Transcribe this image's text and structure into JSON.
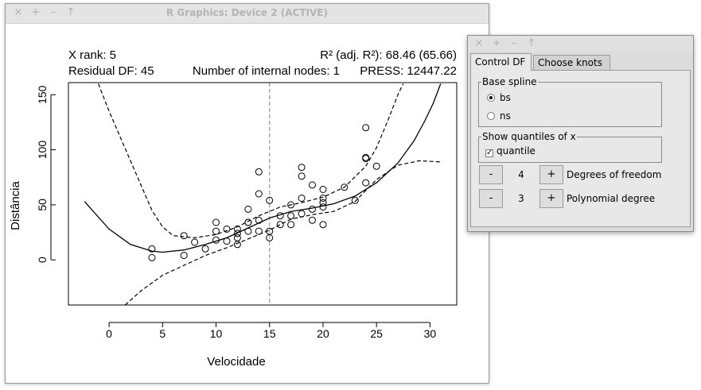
{
  "window": {
    "title": "R Graphics: Device 2 (ACTIVE)",
    "buttons": [
      "×",
      "+",
      "–",
      "↑"
    ]
  },
  "plot": {
    "stats": {
      "x_rank": "X rank: 5",
      "residual_df": "Residual DF: 45",
      "r2": "R² (adj. R²): 68.46 (65.66)",
      "internal_nodes": "Number of internal nodes: 1",
      "press": "PRESS: 12447.22"
    }
  },
  "chart_data": {
    "type": "scatter",
    "xlabel": "Velocidade",
    "ylabel": "Distância",
    "xlim": [
      -3.8,
      32.5
    ],
    "ylim": [
      -41,
      161
    ],
    "xticks": [
      0,
      5,
      10,
      15,
      20,
      25,
      30
    ],
    "yticks": [
      0,
      50,
      100,
      150
    ],
    "vline_x": 15,
    "points": [
      [
        4,
        2
      ],
      [
        4,
        10
      ],
      [
        7,
        4
      ],
      [
        7,
        22
      ],
      [
        8,
        16
      ],
      [
        9,
        10
      ],
      [
        10,
        18
      ],
      [
        10,
        26
      ],
      [
        10,
        34
      ],
      [
        11,
        17
      ],
      [
        11,
        28
      ],
      [
        12,
        14
      ],
      [
        12,
        20
      ],
      [
        12,
        24
      ],
      [
        12,
        28
      ],
      [
        13,
        26
      ],
      [
        13,
        34
      ],
      [
        13,
        34
      ],
      [
        13,
        46
      ],
      [
        14,
        26
      ],
      [
        14,
        36
      ],
      [
        14,
        60
      ],
      [
        14,
        80
      ],
      [
        15,
        20
      ],
      [
        15,
        26
      ],
      [
        15,
        54
      ],
      [
        16,
        32
      ],
      [
        16,
        40
      ],
      [
        17,
        32
      ],
      [
        17,
        40
      ],
      [
        17,
        50
      ],
      [
        18,
        42
      ],
      [
        18,
        56
      ],
      [
        18,
        76
      ],
      [
        18,
        84
      ],
      [
        19,
        36
      ],
      [
        19,
        46
      ],
      [
        19,
        68
      ],
      [
        20,
        32
      ],
      [
        20,
        48
      ],
      [
        20,
        52
      ],
      [
        20,
        56
      ],
      [
        20,
        64
      ],
      [
        22,
        66
      ],
      [
        23,
        54
      ],
      [
        24,
        70
      ],
      [
        24,
        92
      ],
      [
        24,
        93
      ],
      [
        24,
        120
      ],
      [
        25,
        85
      ]
    ],
    "fit": [
      [
        -2.3,
        53
      ],
      [
        0,
        28
      ],
      [
        2,
        14
      ],
      [
        4,
        8
      ],
      [
        5,
        7
      ],
      [
        7,
        9
      ],
      [
        9,
        14
      ],
      [
        11,
        20
      ],
      [
        13,
        29
      ],
      [
        15,
        38
      ],
      [
        17,
        44
      ],
      [
        19,
        47
      ],
      [
        21,
        51
      ],
      [
        23,
        58
      ],
      [
        25,
        70
      ],
      [
        27,
        88
      ],
      [
        28.5,
        108
      ],
      [
        29.5,
        126
      ],
      [
        30.3,
        142
      ],
      [
        31,
        160
      ]
    ],
    "upper_band": [
      [
        -1,
        160
      ],
      [
        0,
        135
      ],
      [
        2,
        90
      ],
      [
        4,
        45
      ],
      [
        5,
        30
      ],
      [
        6,
        22
      ],
      [
        8,
        20
      ],
      [
        10,
        23
      ],
      [
        12,
        30
      ],
      [
        14,
        40
      ],
      [
        16,
        48
      ],
      [
        18,
        52
      ],
      [
        20,
        57
      ],
      [
        22,
        66
      ],
      [
        24,
        85
      ],
      [
        25,
        102
      ],
      [
        26,
        125
      ],
      [
        27,
        150
      ],
      [
        27.5,
        160
      ]
    ],
    "lower_band": [
      [
        1.5,
        -41
      ],
      [
        3,
        -28
      ],
      [
        5,
        -14
      ],
      [
        7,
        -5
      ],
      [
        9,
        4
      ],
      [
        11,
        11
      ],
      [
        13,
        19
      ],
      [
        15,
        27
      ],
      [
        17,
        37
      ],
      [
        19,
        41
      ],
      [
        21,
        44
      ],
      [
        23,
        53
      ],
      [
        25,
        73
      ],
      [
        27,
        86
      ],
      [
        29,
        90
      ],
      [
        31,
        89
      ]
    ]
  },
  "control_panel": {
    "buttons": [
      "×",
      "+",
      "–",
      "↑"
    ],
    "tabs": [
      "Control DF",
      "Choose knots"
    ],
    "base_spline": {
      "label": "Base spline",
      "options": [
        "bs",
        "ns"
      ],
      "selected": "bs"
    },
    "quantiles": {
      "label": "Show quantiles of x",
      "checkbox_label": "quantile",
      "check_mark": "✓"
    },
    "df": {
      "minus": "-",
      "value": "4",
      "plus": "+",
      "label": "Degrees of freedom"
    },
    "poly": {
      "minus": "-",
      "value": "3",
      "plus": "+",
      "label": "Polynomial degree"
    }
  }
}
